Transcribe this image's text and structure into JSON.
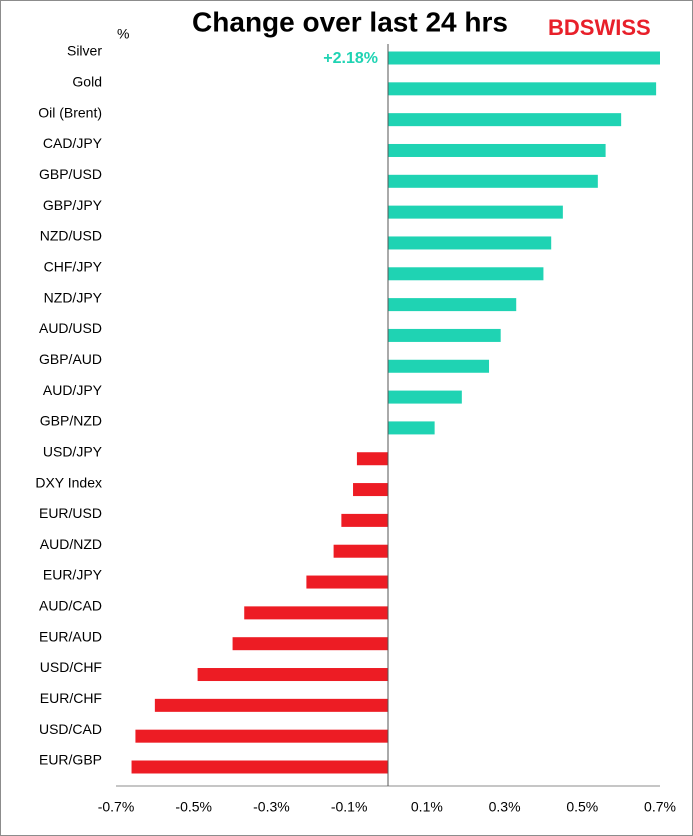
{
  "chart_data": {
    "type": "hbar",
    "title": "Change over last 24 hrs",
    "logo": "BDSWISS",
    "unit_label": "%",
    "categories": [
      "Silver",
      "Gold",
      "Oil (Brent)",
      "CAD/JPY",
      "GBP/USD",
      "GBP/JPY",
      "NZD/USD",
      "CHF/JPY",
      "NZD/JPY",
      "AUD/USD",
      "GBP/AUD",
      "AUD/JPY",
      "GBP/NZD",
      "USD/JPY",
      "DXY Index",
      "EUR/USD",
      "AUD/NZD",
      "EUR/JPY",
      "AUD/CAD",
      "EUR/AUD",
      "USD/CHF",
      "EUR/CHF",
      "USD/CAD",
      "EUR/GBP"
    ],
    "values": [
      2.18,
      0.69,
      0.6,
      0.56,
      0.54,
      0.45,
      0.42,
      0.4,
      0.33,
      0.29,
      0.26,
      0.19,
      0.12,
      -0.08,
      -0.09,
      -0.12,
      -0.14,
      -0.21,
      -0.37,
      -0.4,
      -0.49,
      -0.6,
      -0.65,
      -0.66
    ],
    "value_labels": [
      "+2.18%",
      null,
      null,
      null,
      null,
      null,
      null,
      null,
      null,
      null,
      null,
      null,
      null,
      null,
      null,
      null,
      null,
      null,
      null,
      null,
      null,
      null,
      null,
      null
    ],
    "positive_color": "#1fd3b3",
    "negative_color": "#ed1c24",
    "xlim": [
      -0.7,
      0.7
    ],
    "xticks": [
      {
        "value": -0.7,
        "label": "-0.7%"
      },
      {
        "value": -0.5,
        "label": "-0.5%"
      },
      {
        "value": -0.3,
        "label": "-0.3%"
      },
      {
        "value": -0.1,
        "label": "-0.1%"
      },
      {
        "value": 0.1,
        "label": "0.1%"
      },
      {
        "value": 0.3,
        "label": "0.3%"
      },
      {
        "value": 0.5,
        "label": "0.5%"
      },
      {
        "value": 0.7,
        "label": "0.7%"
      }
    ]
  }
}
